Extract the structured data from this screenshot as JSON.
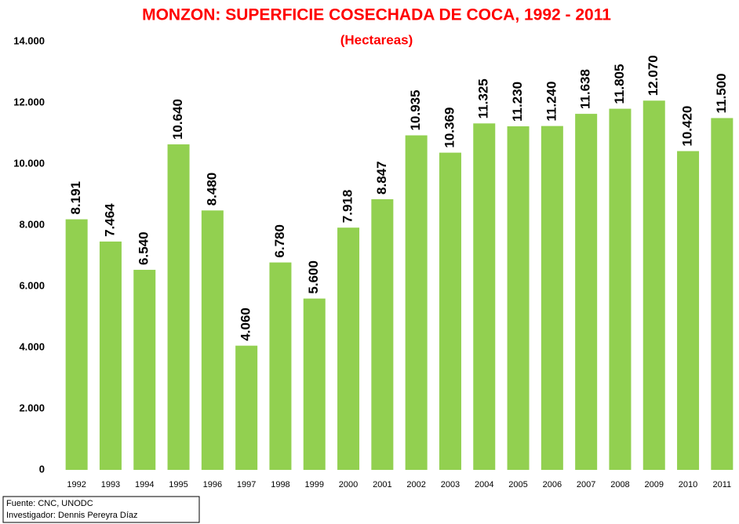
{
  "chart_data": {
    "type": "bar",
    "title": "MONZON: SUPERFICIE COSECHADA DE COCA, 1992 - 2011",
    "subtitle": "(Hectareas)",
    "categories": [
      "1992",
      "1993",
      "1994",
      "1995",
      "1996",
      "1997",
      "1998",
      "1999",
      "2000",
      "2001",
      "2002",
      "2003",
      "2004",
      "2005",
      "2006",
      "2007",
      "2008",
      "2009",
      "2010",
      "2011"
    ],
    "values": [
      8191,
      7464,
      6540,
      10640,
      8480,
      4060,
      6780,
      5600,
      7918,
      8847,
      10935,
      10369,
      11325,
      11230,
      11240,
      11638,
      11805,
      12070,
      10420,
      11500
    ],
    "value_labels": [
      "8.191",
      "7.464",
      "6.540",
      "10.640",
      "8.480",
      "4.060",
      "6.780",
      "5.600",
      "7.918",
      "8.847",
      "10.935",
      "10.369",
      "11.325",
      "11.230",
      "11.240",
      "11.638",
      "11.805",
      "12.070",
      "10.420",
      "11.500"
    ],
    "color": "#92d050",
    "ylim": [
      0,
      14000
    ],
    "yticks": [
      0,
      {
        "value": 2000,
        "label": "2.000"
      },
      {
        "value": 4000,
        "label": "4.000"
      },
      {
        "value": 6000,
        "label": "6.000"
      },
      {
        "value": 8000,
        "label": "8.000"
      },
      {
        "value": 10000,
        "label": "10.000"
      },
      {
        "value": 12000,
        "label": "12.000"
      },
      {
        "value": 14000,
        "label": "14.000"
      }
    ],
    "grid": false,
    "notes": [
      "Fuente: CNC, UNODC",
      "Investigador: Dennis Pereyra Díaz"
    ]
  }
}
